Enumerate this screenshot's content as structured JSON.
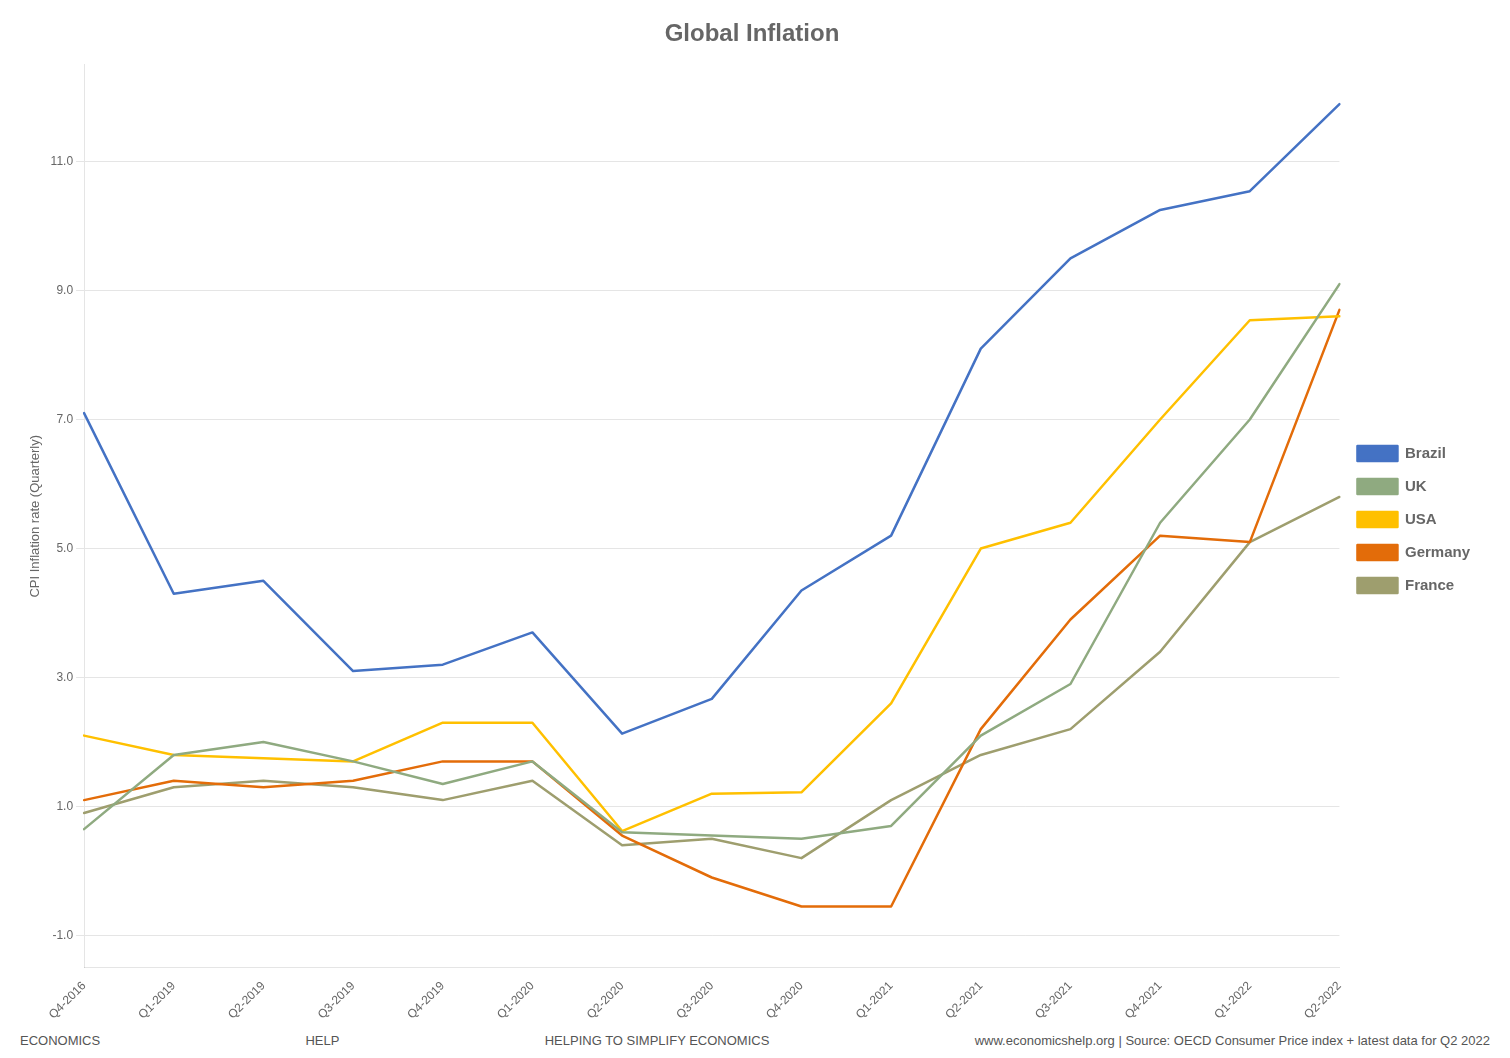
{
  "chart_data": {
    "type": "line",
    "title": "Global Inflation",
    "y_label": "CPI Inflation rate (Quarterly)",
    "annotations": [
      "ECONOMICS",
      "HELP",
      "HELPING TO SIMPLIFY ECONOMICS",
      "www.economicshelp.org | Source: OECD Consumer Price index + latest data for Q2 2022"
    ],
    "categories": [
      "Q4-2016",
      "Q1-2019",
      "Q2-2019",
      "Q3-2019",
      "Q4-2019",
      "Q1-2020",
      "Q2-2020",
      "Q3-2020",
      "Q4-2020",
      "Q1-2021",
      "Q2-2021",
      "Q3-2021",
      "Q4-2021",
      "Q1-2022",
      "Q2-2022"
    ],
    "series": [
      {
        "name": "Brazil",
        "color": "#4472C4",
        "values": [
          7.1,
          4.3,
          4.5,
          3.1,
          3.2,
          3.7,
          2.13,
          2.67,
          4.35,
          5.2,
          8.1,
          9.5,
          10.25,
          10.54,
          11.89
        ]
      },
      {
        "name": "UK",
        "color": "#8faa80",
        "values": [
          0.65,
          1.8,
          2.0,
          1.7,
          1.35,
          1.7,
          0.6,
          0.55,
          0.5,
          0.7,
          2.1,
          2.9,
          5.4,
          7.0,
          9.1
        ]
      },
      {
        "name": "USA",
        "color": "#FFC000",
        "values": [
          2.1,
          1.8,
          1.75,
          1.7,
          2.3,
          2.3,
          0.62,
          1.2,
          1.22,
          2.6,
          5.0,
          5.4,
          7.0,
          8.54,
          8.6
        ]
      },
      {
        "name": "Germany",
        "color": "#E36C09",
        "values": [
          1.1,
          1.4,
          1.3,
          1.4,
          1.7,
          1.7,
          0.55,
          -0.1,
          -0.55,
          -0.55,
          2.2,
          3.9,
          5.2,
          5.1,
          8.7
        ]
      },
      {
        "name": "France",
        "color": "#9e9e6e",
        "values": [
          0.9,
          1.3,
          1.4,
          1.3,
          1.1,
          1.4,
          0.4,
          0.5,
          0.2,
          1.1,
          1.8,
          2.2,
          3.4,
          5.1,
          5.8
        ]
      }
    ],
    "ylim": [
      -1.5,
      12.5
    ],
    "yticks": [
      {
        "value": -1.0,
        "label": "-1.0"
      },
      {
        "value": 1.0,
        "label": "1.0"
      },
      {
        "value": 3.0,
        "label": "3.0"
      },
      {
        "value": 5.0,
        "label": "5.0"
      },
      {
        "value": 7.0,
        "label": "7.0"
      },
      {
        "value": 9.0,
        "label": "9.0"
      },
      {
        "value": 11.0,
        "label": "11.0"
      }
    ],
    "grid": true,
    "legend": "right"
  }
}
